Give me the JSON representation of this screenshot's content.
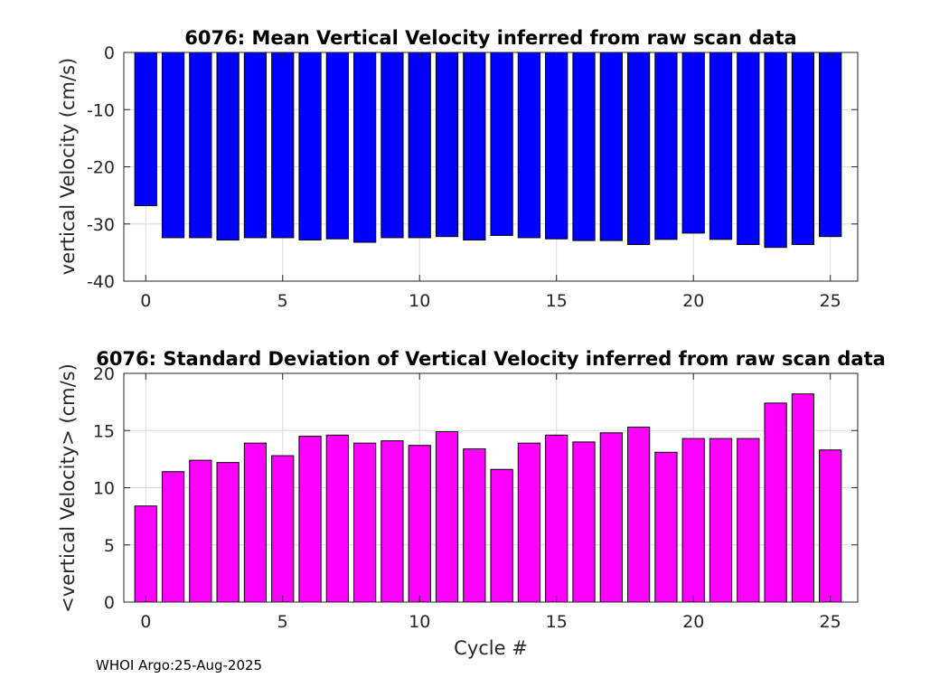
{
  "footer": "WHOI Argo:25-Aug-2025",
  "chart_data": [
    {
      "type": "bar",
      "title": "6076: Mean Vertical Velocity inferred from raw scan data",
      "xlabel": "",
      "ylabel": "vertical Velocity (cm/s)",
      "color": "#0000ff",
      "xlim": [
        -0.8,
        26.0
      ],
      "ylim": [
        -40,
        0
      ],
      "xticks": [
        0,
        5,
        10,
        15,
        20,
        25
      ],
      "yticks": [
        -40,
        -30,
        -20,
        -10,
        0
      ],
      "grid": true,
      "x": [
        0,
        1,
        2,
        3,
        4,
        5,
        6,
        7,
        8,
        9,
        10,
        11,
        12,
        13,
        14,
        15,
        16,
        17,
        18,
        19,
        20,
        21,
        22,
        23,
        24,
        25
      ],
      "values": [
        -26.8,
        -32.4,
        -32.4,
        -32.8,
        -32.4,
        -32.4,
        -32.8,
        -32.6,
        -33.2,
        -32.4,
        -32.4,
        -32.2,
        -32.8,
        -32.0,
        -32.4,
        -32.6,
        -32.9,
        -32.9,
        -33.6,
        -32.7,
        -31.6,
        -32.7,
        -33.6,
        -34.1,
        -33.6,
        -32.2
      ]
    },
    {
      "type": "bar",
      "title": "6076: Standard Deviation of Vertical Velocity inferred from raw scan data",
      "xlabel": "Cycle #",
      "ylabel": "<vertical Velocity> (cm/s)",
      "color": "#ff00ff",
      "xlim": [
        -0.8,
        26.0
      ],
      "ylim": [
        0,
        20
      ],
      "xticks": [
        0,
        5,
        10,
        15,
        20,
        25
      ],
      "yticks": [
        0,
        5,
        10,
        15,
        20
      ],
      "grid": true,
      "x": [
        0,
        1,
        2,
        3,
        4,
        5,
        6,
        7,
        8,
        9,
        10,
        11,
        12,
        13,
        14,
        15,
        16,
        17,
        18,
        19,
        20,
        21,
        22,
        23,
        24,
        25
      ],
      "values": [
        8.4,
        11.4,
        12.4,
        12.2,
        13.9,
        12.8,
        14.5,
        14.6,
        13.9,
        14.1,
        13.7,
        14.9,
        13.4,
        11.6,
        13.9,
        14.6,
        14.0,
        14.8,
        15.3,
        13.1,
        14.3,
        14.3,
        14.3,
        17.4,
        18.2,
        13.3
      ]
    }
  ]
}
